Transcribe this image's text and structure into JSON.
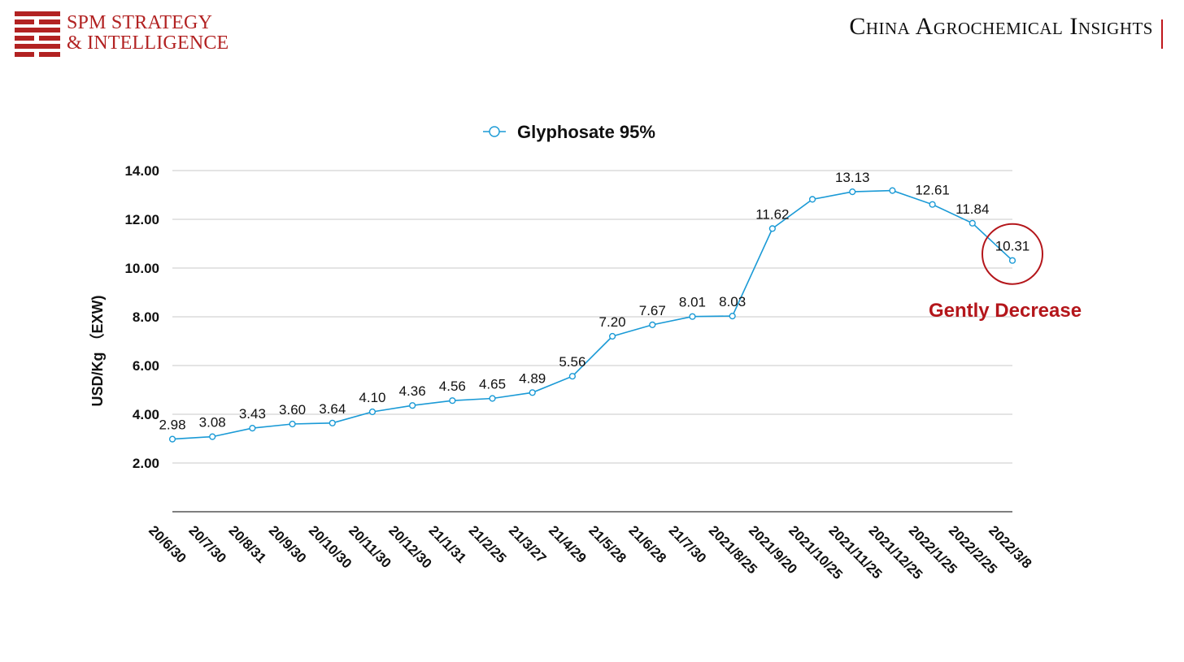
{
  "header": {
    "logo_line1": "SPM STRATEGY",
    "logo_line2": "& INTELLIGENCE",
    "title": "China Agrochemical Insights"
  },
  "colors": {
    "brand_red": "#b22222",
    "series": "#1a9ad6",
    "annotation": "#b4161b",
    "grid": "#c8c8c8"
  },
  "chart_data": {
    "type": "line",
    "title": "",
    "xlabel": "",
    "ylabel": "USD/Kg （EXW)",
    "ylim": [
      0,
      14
    ],
    "yticks": [
      "2.00",
      "4.00",
      "6.00",
      "8.00",
      "10.00",
      "12.00",
      "14.00"
    ],
    "grid": true,
    "legend_position": "top-center",
    "categories": [
      "20/6/30",
      "20/7/30",
      "20/8/31",
      "20/9/30",
      "20/10/30",
      "20/11/30",
      "20/12/30",
      "21/1/31",
      "21/2/25",
      "21/3/27",
      "21/4/29",
      "21/5/28",
      "21/6/28",
      "21/7/30",
      "2021/8/25",
      "2021/9/20",
      "2021/10/25",
      "2021/11/25",
      "2021/12/25",
      "2022/1/25",
      "2022/2/25",
      "2022/3/8"
    ],
    "series": [
      {
        "name": "Glyphosate 95%",
        "values": [
          2.98,
          3.08,
          3.43,
          3.6,
          3.64,
          4.1,
          4.36,
          4.56,
          4.65,
          4.89,
          5.56,
          7.2,
          7.67,
          8.01,
          8.03,
          11.62,
          12.82,
          13.13,
          13.18,
          12.61,
          11.84,
          10.31
        ],
        "data_labels": [
          "2.98",
          "3.08",
          "3.43",
          "3.60",
          "3.64",
          "4.10",
          "4.36",
          "4.56",
          "4.65",
          "4.89",
          "5.56",
          "7.20",
          "7.67",
          "8.01",
          "8.03",
          "11.62",
          "",
          "13.13",
          "",
          "12.61",
          "11.84",
          "10.31"
        ]
      }
    ],
    "annotation": "Gently Decrease"
  }
}
